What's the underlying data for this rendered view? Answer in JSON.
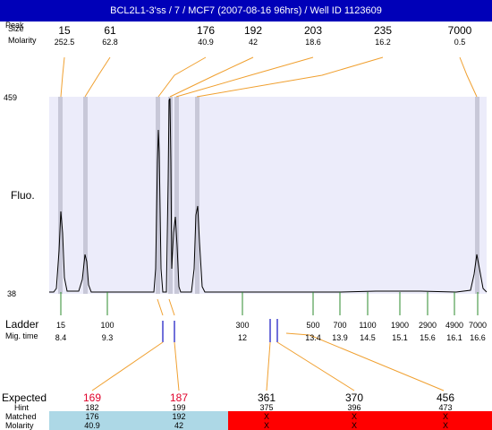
{
  "header": {
    "title": "BCL2L1-3'ss / 7 / MCF7 (2007-08-16 96hrs) / Well ID 1123609",
    "corner_label_1": "Peak",
    "corner_label_2": "Size",
    "molarity_label": "Molarity"
  },
  "peaks": [
    {
      "size": "15",
      "molarity": "252.5"
    },
    {
      "size": "61",
      "molarity": "62.8"
    },
    {
      "size": "176",
      "molarity": "40.9"
    },
    {
      "size": "192",
      "molarity": "42"
    },
    {
      "size": "203",
      "molarity": "18.6"
    },
    {
      "size": "235",
      "molarity": "16.2"
    },
    {
      "size": "7000",
      "molarity": "0.5"
    }
  ],
  "plot": {
    "y_max_label": "459",
    "y_min_label": "38",
    "y_axis_label": "Fluo.",
    "background_color": "#ececfa",
    "trace_color": "#000000",
    "marker_band_color": "#c8c8d8"
  },
  "ladder": {
    "label": "Ladder",
    "time_label": "Mig. time",
    "entries": [
      {
        "size": "15",
        "time": "8.4"
      },
      {
        "size": "100",
        "time": "9.3"
      },
      {
        "size": "300",
        "time": "12"
      },
      {
        "size": "500",
        "time": "13.4"
      },
      {
        "size": "700",
        "time": "13.9"
      },
      {
        "size": "1100",
        "time": "14.5"
      },
      {
        "size": "1900",
        "time": "15.1"
      },
      {
        "size": "2900",
        "time": "15.6"
      },
      {
        "size": "4900",
        "time": "16.1"
      },
      {
        "size": "7000",
        "time": "16.6"
      }
    ]
  },
  "expected": {
    "label": "Expected",
    "hint_label": "Hint",
    "matched_label": "Matched",
    "molarity_label": "Molarity",
    "matched_color": "#add8e6",
    "unmatched_color": "#ff0000",
    "columns": [
      {
        "expected": "169",
        "hint": "182",
        "matched": "176",
        "molarity": "40.9",
        "status": "matched"
      },
      {
        "expected": "187",
        "hint": "199",
        "matched": "192",
        "molarity": "42",
        "status": "matched"
      },
      {
        "expected": "361",
        "hint": "375",
        "matched": "X",
        "molarity": "X",
        "status": "unmatched"
      },
      {
        "expected": "370",
        "hint": "396",
        "matched": "X",
        "molarity": "X",
        "status": "unmatched"
      },
      {
        "expected": "456",
        "hint": "473",
        "matched": "X",
        "molarity": "X",
        "status": "unmatched"
      }
    ]
  }
}
